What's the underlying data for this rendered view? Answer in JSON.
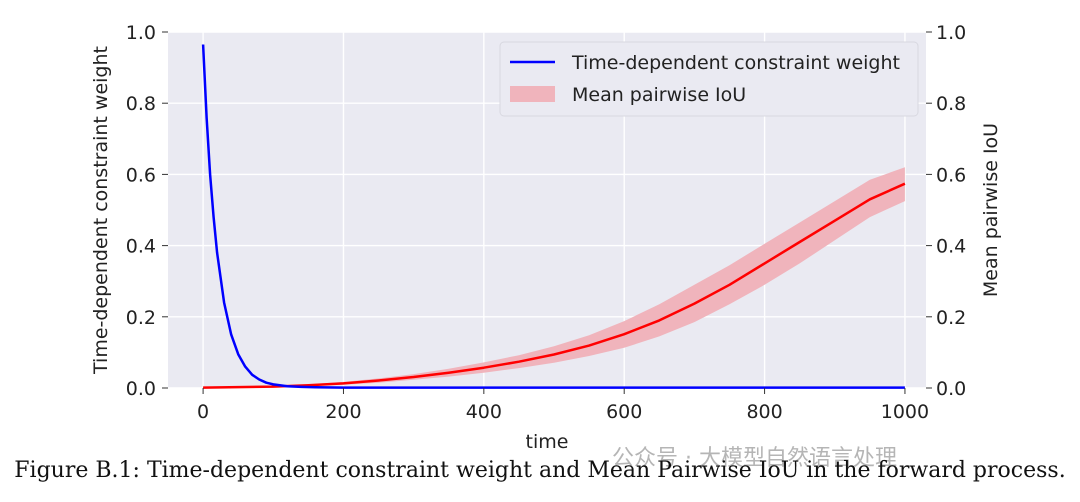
{
  "chart_data": {
    "type": "line",
    "xlabel": "time",
    "ylabel_left": "Time-dependent constraint weight",
    "ylabel_right": "Mean pairwise IoU",
    "xlim": [
      -50,
      1030
    ],
    "ylim_left": [
      0,
      1.0
    ],
    "ylim_right": [
      0,
      1.0
    ],
    "x_ticks": [
      0,
      200,
      400,
      600,
      800,
      1000
    ],
    "y_ticks": [
      0.0,
      0.2,
      0.4,
      0.6,
      0.8,
      1.0
    ],
    "y_tick_labels": [
      "0.0",
      "0.2",
      "0.4",
      "0.6",
      "0.8",
      "1.0"
    ],
    "grid": true,
    "legend_position": "top-right",
    "series": [
      {
        "name": "Time-dependent constraint weight",
        "type": "line",
        "axis": "left",
        "color": "#0000ff",
        "x": [
          0,
          5,
          10,
          15,
          20,
          30,
          40,
          50,
          60,
          70,
          80,
          90,
          100,
          120,
          140,
          160,
          200,
          300,
          400,
          500,
          600,
          700,
          800,
          900,
          1000
        ],
        "y": [
          0.965,
          0.76,
          0.6,
          0.48,
          0.38,
          0.24,
          0.15,
          0.095,
          0.06,
          0.037,
          0.024,
          0.015,
          0.01,
          0.005,
          0.003,
          0.002,
          0.001,
          0.001,
          0.001,
          0.001,
          0.001,
          0.001,
          0.001,
          0.001,
          0.001
        ]
      },
      {
        "name": "Mean pairwise IoU",
        "type": "band",
        "axis": "right",
        "color": "#ff0000",
        "band_color": "#f0b4bc",
        "x": [
          0,
          100,
          150,
          200,
          250,
          300,
          350,
          400,
          450,
          500,
          550,
          600,
          650,
          700,
          750,
          800,
          850,
          900,
          950,
          1000
        ],
        "mean": [
          0.001,
          0.004,
          0.008,
          0.013,
          0.021,
          0.031,
          0.043,
          0.057,
          0.074,
          0.094,
          0.119,
          0.151,
          0.19,
          0.237,
          0.29,
          0.35,
          0.41,
          0.47,
          0.53,
          0.574
        ],
        "lower": [
          0.0,
          0.003,
          0.006,
          0.009,
          0.015,
          0.023,
          0.032,
          0.043,
          0.056,
          0.071,
          0.09,
          0.113,
          0.145,
          0.185,
          0.235,
          0.29,
          0.35,
          0.415,
          0.48,
          0.525
        ],
        "upper": [
          0.002,
          0.006,
          0.01,
          0.017,
          0.027,
          0.039,
          0.054,
          0.072,
          0.092,
          0.117,
          0.148,
          0.188,
          0.235,
          0.29,
          0.345,
          0.405,
          0.465,
          0.525,
          0.585,
          0.62
        ]
      }
    ]
  },
  "caption": "Figure B.1: Time-dependent constraint weight and Mean Pairwise IoU in the forward process.",
  "watermark": "公众号 · 大模型自然语言处理"
}
